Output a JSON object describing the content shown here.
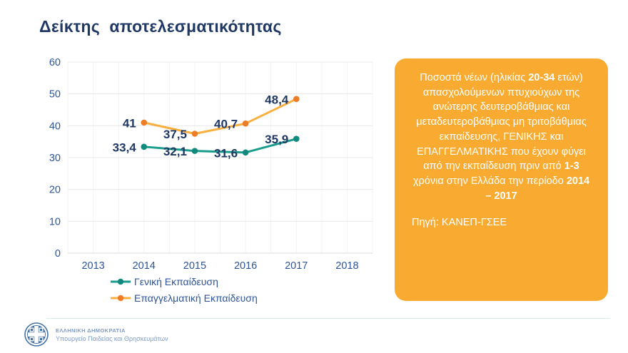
{
  "page": {
    "title": "Δείκτης  αποτελεσματικότητας"
  },
  "chart_data": {
    "type": "line",
    "title": "Δείκτης αποτελεσματικότητας",
    "categories": [
      "2013",
      "2014",
      "2015",
      "2016",
      "2017",
      "2018"
    ],
    "series": [
      {
        "name": "Γενική Εκπαίδευση",
        "x": [
          "2014",
          "2015",
          "2016",
          "2017"
        ],
        "values": [
          33.4,
          32.1,
          31.6,
          35.9
        ],
        "point_labels": [
          "33,4",
          "32,1",
          "31,6",
          "35,9"
        ],
        "line_color": "#1A9C8C",
        "marker_color": "#12897D"
      },
      {
        "name": "Επαγγελματική Εκπαίδευση",
        "x": [
          "2014",
          "2015",
          "2016",
          "2017"
        ],
        "values": [
          41,
          37.5,
          40.7,
          48.4
        ],
        "point_labels": [
          "41",
          "37,5",
          "40,7",
          "48,4"
        ],
        "line_color": "#FBAF3F",
        "marker_color": "#EF7D27"
      }
    ],
    "xlabel": "",
    "ylabel": "",
    "ylim": [
      0,
      60
    ],
    "yticks": [
      0,
      10,
      20,
      30,
      40,
      50,
      60
    ],
    "grid": true,
    "legend_position": "bottom-left",
    "colors": {
      "axis_text": "#2F5597",
      "data_label": "#1F3864",
      "grid_major": "#E8E8E8",
      "grid_minor": "#F3F3F3"
    }
  },
  "panel": {
    "bg_color": "#F8AB30",
    "text_segments": [
      {
        "t": "Ποσοστά νέων (ηλικίας ",
        "b": false
      },
      {
        "t": "20-34",
        "b": true
      },
      {
        "t": " ετών) απασχολούμενων πτυχιούχων της ανώτερης δευτεροβάθμιας και μεταδευτεροβάθμιας μη τριτοβάθμιας εκπαίδευσης, ΓΕΝΙΚΗΣ και ΕΠΑΓΓΕΛΜΑΤΙΚΗΣ που έχουν φύγει από την εκπαίδευση πριν από ",
        "b": false
      },
      {
        "t": "1-3",
        "b": true
      },
      {
        "t": " χρόνια στην Ελλάδα την περίοδο ",
        "b": false
      },
      {
        "t": "2014 – 2017",
        "b": true
      }
    ],
    "source": "Πηγή: ΚΑΝΕΠ-ΓΣΕΕ"
  },
  "footer": {
    "org": "ΕΛΛΗΝΙΚΗ ΔΗΜΟΚΡΑΤΙΑ",
    "ministry": "Υπουργείο Παιδείας και Θρησκευμάτων",
    "emblem_color": "#4472A8"
  }
}
